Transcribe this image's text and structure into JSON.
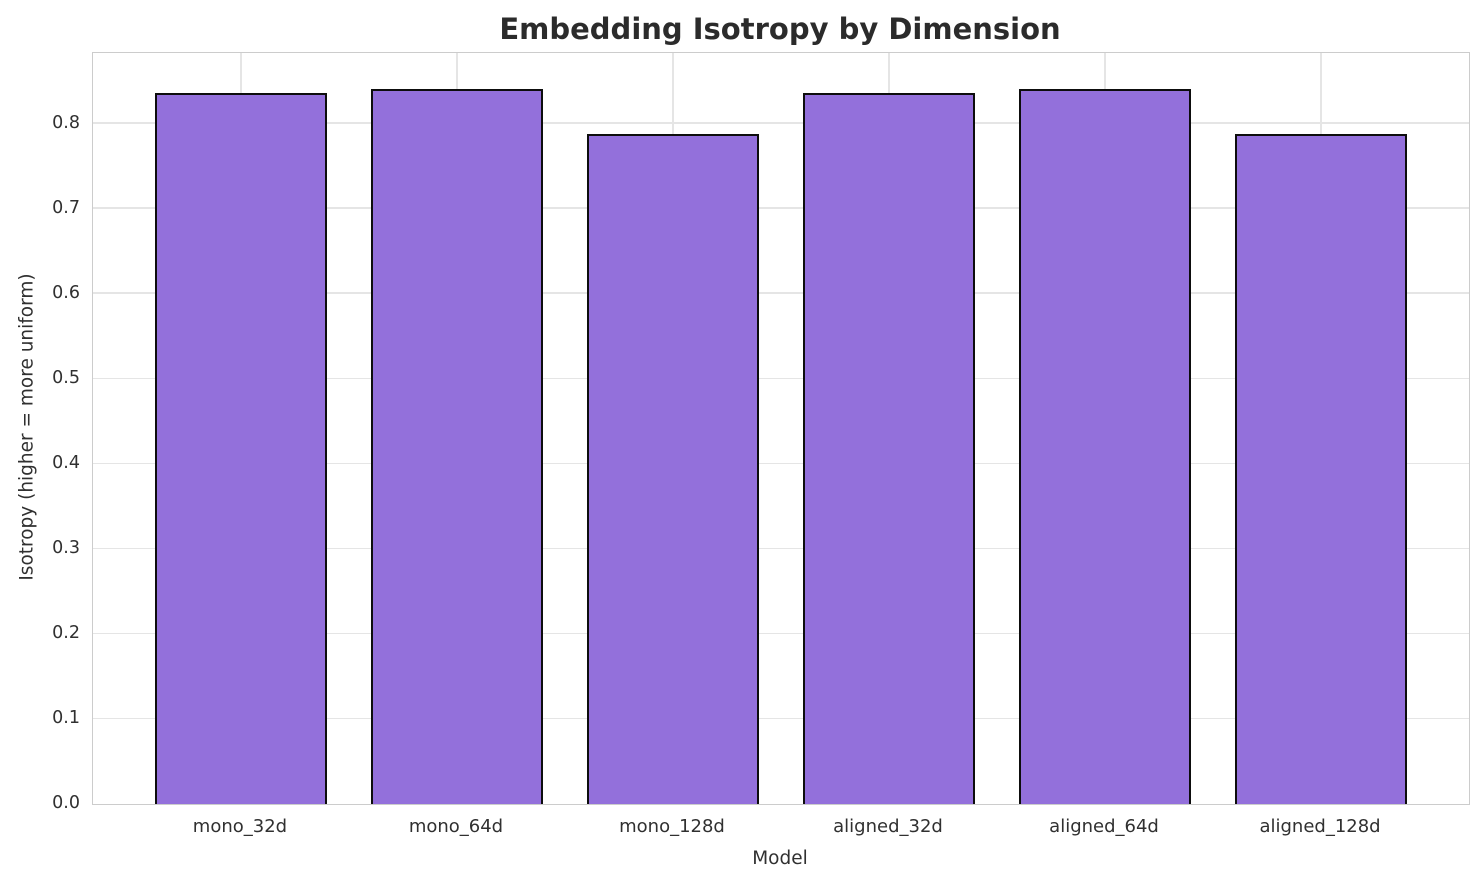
{
  "chart_data": {
    "type": "bar",
    "title": "Embedding Isotropy by Dimension",
    "xlabel": "Model",
    "ylabel": "Isotropy (higher = more uniform)",
    "categories": [
      "mono_32d",
      "mono_64d",
      "mono_128d",
      "aligned_32d",
      "aligned_64d",
      "aligned_128d"
    ],
    "values": [
      0.837,
      0.841,
      0.788,
      0.837,
      0.841,
      0.788
    ],
    "ylim": [
      0,
      0.8835
    ],
    "yticks": [
      "0.0",
      "0.1",
      "0.2",
      "0.3",
      "0.4",
      "0.5",
      "0.6",
      "0.7",
      "0.8"
    ],
    "grid": "on",
    "legend": "none",
    "bar_color": "#9370db",
    "bar_edge_color": "#0d0d0d",
    "grid_color": "#e5e5e5",
    "spine_color": "#cccccc",
    "text_color": "#303030",
    "title_color": "#2b2b2b",
    "background_color": "#ffffff"
  }
}
